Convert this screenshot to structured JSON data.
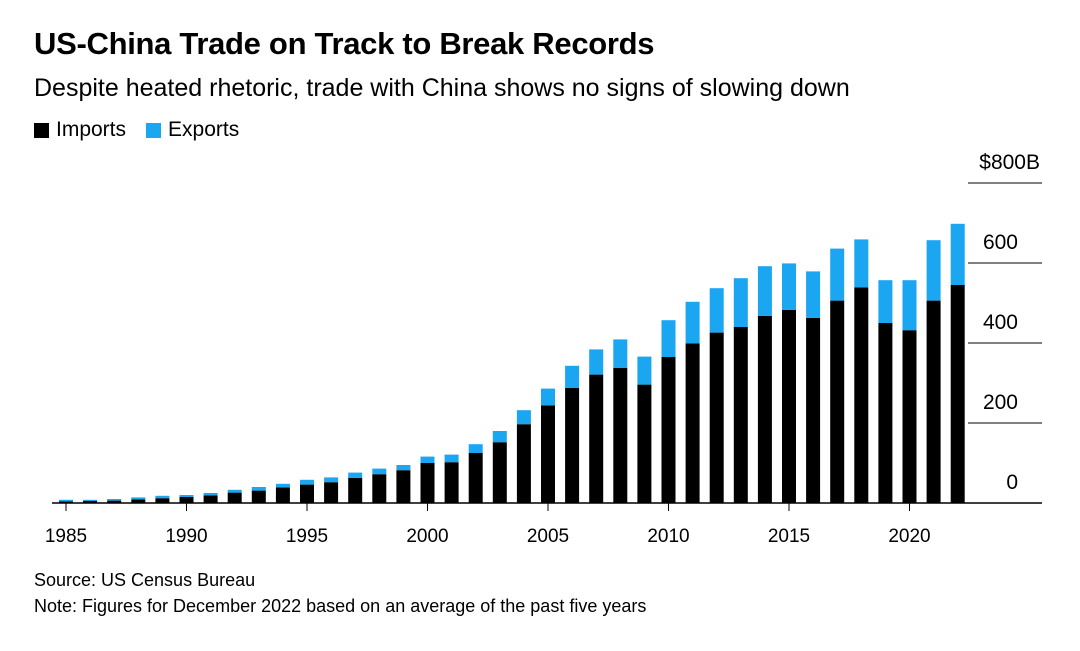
{
  "header": {
    "title": "US-China Trade on Track to Break Records",
    "subtitle": "Despite heated rhetoric, trade with China shows no signs of slowing down"
  },
  "legend": [
    {
      "label": "Imports",
      "color": "#000000"
    },
    {
      "label": "Exports",
      "color": "#1aa6f0"
    }
  ],
  "footer": {
    "source": "Source: US Census Bureau",
    "note": "Note: Figures for December 2022 based on an average of the past five years"
  },
  "chart_data": {
    "type": "bar",
    "stacked": true,
    "categories": [
      1985,
      1986,
      1987,
      1988,
      1989,
      1990,
      1991,
      1992,
      1993,
      1994,
      1995,
      1996,
      1997,
      1998,
      1999,
      2000,
      2001,
      2002,
      2003,
      2004,
      2005,
      2006,
      2007,
      2008,
      2009,
      2010,
      2011,
      2012,
      2013,
      2014,
      2015,
      2016,
      2017,
      2018,
      2019,
      2020,
      2021,
      2022
    ],
    "series": [
      {
        "name": "Imports",
        "color": "#000000",
        "values": [
          4,
          5,
          6,
          9,
          12,
          15,
          19,
          26,
          31,
          39,
          46,
          52,
          63,
          72,
          82,
          100,
          102,
          125,
          152,
          197,
          244,
          288,
          321,
          338,
          296,
          365,
          399,
          426,
          440,
          468,
          483,
          463,
          506,
          539,
          450,
          432,
          506,
          545
        ]
      },
      {
        "name": "Exports",
        "color": "#1aa6f0",
        "values": [
          4,
          3,
          4,
          5,
          6,
          5,
          6,
          7,
          9,
          9,
          12,
          12,
          13,
          14,
          13,
          16,
          19,
          22,
          28,
          35,
          42,
          55,
          63,
          71,
          70,
          92,
          104,
          111,
          122,
          124,
          116,
          116,
          130,
          120,
          107,
          125,
          151,
          153
        ]
      }
    ],
    "x_ticks": [
      "1985",
      "1990",
      "1995",
      "2000",
      "2005",
      "2010",
      "2015",
      "2020"
    ],
    "y_ticks": [
      {
        "value": 0,
        "label": "0"
      },
      {
        "value": 200,
        "label": "200"
      },
      {
        "value": 400,
        "label": "400"
      },
      {
        "value": 600,
        "label": "600"
      },
      {
        "value": 800,
        "label": "$800B"
      }
    ],
    "ylim": [
      0,
      800
    ],
    "ylabel": "",
    "xlabel": "",
    "grid": false,
    "legend_position": "top-left"
  }
}
